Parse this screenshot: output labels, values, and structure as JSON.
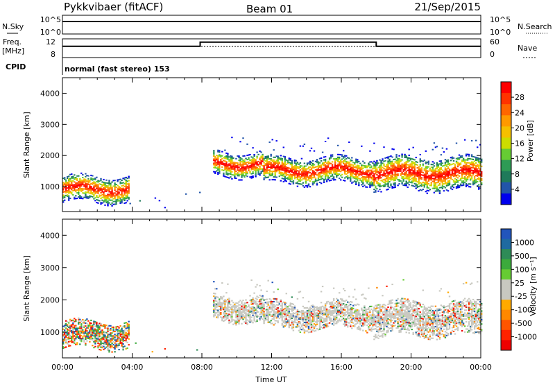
{
  "header": {
    "radar": "Pykkvibaer (fitACF)",
    "beam": "Beam 01",
    "date": "21/Sep/2015"
  },
  "top_panel": {
    "left_label_top": "N.Sky",
    "left_label_bottom": "Freq.",
    "left_unit": "[MHz]",
    "cpid_label": "CPID",
    "nsky_ticks": [
      "10^5",
      "10^0"
    ],
    "nsearch_ticks": [
      "10^5",
      "10^0"
    ],
    "freq_ticks": [
      "12",
      "8"
    ],
    "nave_ticks": [
      "60",
      "0"
    ],
    "right_label_top": "N.Search",
    "right_label_bottom": "Nave",
    "cpid_text": "normal (fast stereo) 153"
  },
  "power_colorbar": {
    "title": "Power [dB]",
    "ticks": [
      "28",
      "24",
      "20",
      "16",
      "12",
      "8",
      "4"
    ],
    "colors": [
      "#ff0000",
      "#ff3300",
      "#ff6600",
      "#ff9900",
      "#f5c000",
      "#ccdd00",
      "#66cc33",
      "#2e9b55",
      "#1f7a5a",
      "#2255aa",
      "#0000ee"
    ]
  },
  "velocity_colorbar": {
    "title": "Velocity [m s⁻¹]",
    "ticks": [
      "1000",
      "500",
      "100",
      "25",
      "-25",
      "-100",
      "-500",
      "-1000"
    ],
    "colors": [
      "#2255bb",
      "#1f6aa0",
      "#2e8b57",
      "#3caa3c",
      "#66cc33",
      "#c8c8c0",
      "#c8c8c0",
      "#ffaa00",
      "#ff8800",
      "#ff5500",
      "#ff2200",
      "#ee0000"
    ]
  },
  "chart_data": [
    {
      "type": "heatmap",
      "name": "power",
      "ylabel": "Slant Range [km]",
      "ylim": [
        200,
        4500
      ],
      "yticks": [
        1000,
        2000,
        3000,
        4000
      ],
      "xlim": [
        0,
        24
      ],
      "xticks": [
        "00:00",
        "04:00",
        "08:00",
        "12:00",
        "16:00",
        "20:00",
        "00:00"
      ],
      "echo_bands": [
        {
          "t0": 0.0,
          "t1": 3.8,
          "center": 900,
          "width": 700
        },
        {
          "t0": 8.6,
          "t1": 11.5,
          "center": 1700,
          "width": 650
        },
        {
          "t0": 11.5,
          "t1": 17.8,
          "center": 1500,
          "width": 700
        },
        {
          "t0": 17.8,
          "t1": 24.0,
          "center": 1400,
          "width": 900
        }
      ]
    },
    {
      "type": "heatmap",
      "name": "velocity",
      "ylabel": "Slant Range [km]",
      "xlabel": "Time UT",
      "ylim": [
        200,
        4500
      ],
      "yticks": [
        1000,
        2000,
        3000,
        4000
      ],
      "xlim": [
        0,
        24
      ],
      "xticks": [
        "00:00",
        "04:00",
        "08:00",
        "12:00",
        "16:00",
        "20:00",
        "00:00"
      ]
    },
    {
      "type": "line",
      "name": "frequency",
      "x": [
        0,
        7.9,
        7.9,
        18.0,
        18.0,
        24
      ],
      "y": [
        10.4,
        10.4,
        11.3,
        11.3,
        10.4,
        10.4
      ]
    }
  ]
}
